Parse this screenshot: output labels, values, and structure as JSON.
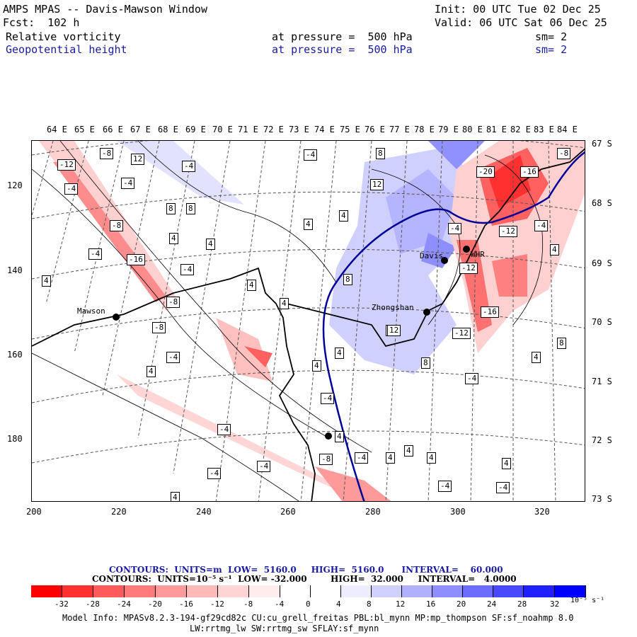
{
  "header": {
    "title": "AMPS MPAS -- Davis-Mawson Window",
    "init": "Init: 00 UTC Tue 02 Dec 25",
    "fcst": "Fcst:  102 h",
    "valid": "Valid: 06 UTC Sat 06 Dec 25",
    "field1_name": "Relative vorticity",
    "field1_level": "at pressure =  500 hPa",
    "field1_sm": "sm= 2",
    "field2_name": "Geopotential height",
    "field2_level": "at pressure =  500 hPa",
    "field2_sm": "sm= 2"
  },
  "axes": {
    "lon_labels": [
      "64 E",
      "65 E",
      "66 E",
      "67 E",
      "68 E",
      "69 E",
      "70 E",
      "71 E",
      "72 E",
      "73 E",
      "74 E",
      "75 E",
      "76 E",
      "77 E",
      "78 E",
      "79 E",
      "80 E",
      "81 E",
      "82 E",
      "83 E",
      "84 E"
    ],
    "lat_labels": [
      "67 S",
      "68 S",
      "69 S",
      "70 S",
      "71 S",
      "72 S",
      "73 S"
    ],
    "x_ticks": [
      "200",
      "220",
      "240",
      "260",
      "280",
      "300",
      "320"
    ],
    "y_ticks": [
      "120",
      "140",
      "160",
      "180"
    ]
  },
  "stations": [
    {
      "name": "Mawson"
    },
    {
      "name": "Davis"
    },
    {
      "name": "Zhongshan"
    },
    {
      "name": "WHR"
    },
    {
      "name": ""
    }
  ],
  "contour_labels": [
    "-12",
    "-8",
    "12",
    "-4",
    "-4",
    "8",
    "8",
    "-20",
    "-16",
    "-8",
    "-4",
    "12",
    "-4",
    "8",
    "4",
    "4",
    "-12",
    "-4",
    "-8",
    "4",
    "4",
    "4",
    "-4",
    "-16",
    "-12",
    "4",
    "4",
    "-8",
    "-4",
    "8",
    "-4",
    "4",
    "8",
    "-16",
    "-8",
    "-4",
    "-12",
    "4",
    "4",
    "4",
    "-4",
    "12",
    "4",
    "8",
    "8",
    "-4",
    "-4",
    "4",
    "-4",
    "-4",
    "4",
    "4",
    "-4",
    "4",
    "-8",
    "-4",
    "4",
    "4",
    "-4"
  ],
  "legend": {
    "contours1": "CONTOURS:  UNITS=m  LOW=  5160.0     HIGH=  5160.0      INTERVAL=    60.000",
    "contours2": "CONTOURS:  UNITS=10⁻⁵ s⁻¹  LOW= -32.000        HIGH=  32.000     INTERVAL=   4.0000",
    "colorbar_labels": [
      "-32",
      "-28",
      "-24",
      "-20",
      "-16",
      "-12",
      "-8",
      "-4",
      "0",
      "4",
      "8",
      "12",
      "16",
      "20",
      "24",
      "28",
      "32"
    ],
    "colorbar_units": "10⁻⁵ s⁻¹",
    "colorbar_colors": [
      "#ff0000",
      "#ff3030",
      "#ff5a5a",
      "#ff7a7a",
      "#ff9a9a",
      "#ffb9b9",
      "#ffd4d4",
      "#ffeded",
      "#ffffff",
      "#ffffff",
      "#ededff",
      "#d0d0ff",
      "#b0b0ff",
      "#8e8eff",
      "#6c6cff",
      "#4848ff",
      "#2020ff",
      "#0000ff"
    ]
  },
  "footer": {
    "model_info": "Model Info: MPASv8.2.3-194-gf29cd82c CU:cu_grell_freitas PBL:bl_mynn MP:mp_thompson SF:sf_noahmp 8.0",
    "model_info2": "LW:rrtmg_lw SW:rrtmg_sw SFLAY:sf_mynn"
  }
}
